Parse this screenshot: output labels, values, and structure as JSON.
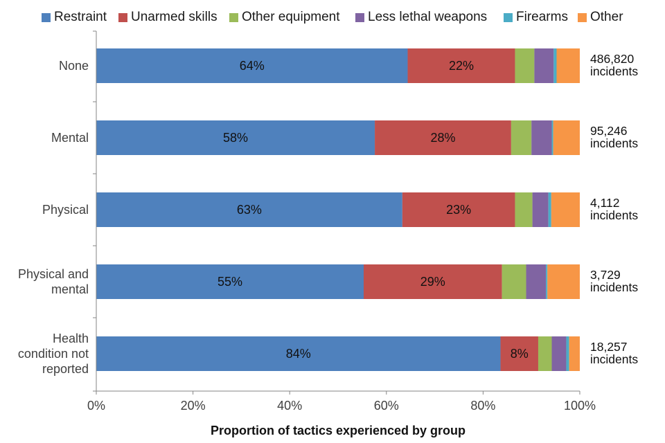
{
  "chart_data": {
    "type": "bar",
    "orientation": "horizontal",
    "stacked": true,
    "xlabel": "Proportion of tactics experienced by group",
    "xlim": [
      0,
      100
    ],
    "xticks": [
      "0%",
      "20%",
      "40%",
      "60%",
      "80%",
      "100%"
    ],
    "grid": false,
    "legend_position": "top",
    "categories": [
      "None",
      "Mental",
      "Physical",
      "Physical and mental",
      "Health condition not reported"
    ],
    "category_lines": [
      [
        "None"
      ],
      [
        "Mental"
      ],
      [
        "Physical"
      ],
      [
        "Physical and",
        "mental"
      ],
      [
        "Health",
        "condition not",
        "reported"
      ]
    ],
    "totals": [
      [
        "486,820",
        "incidents"
      ],
      [
        "95,246",
        "incidents"
      ],
      [
        "4,112",
        "incidents"
      ],
      [
        "3,729",
        "incidents"
      ],
      [
        "18,257",
        "incidents"
      ]
    ],
    "series": [
      {
        "name": "Restraint",
        "color": "#4F81BD",
        "values": [
          64.4,
          57.6,
          63.3,
          55.3,
          83.6
        ],
        "labels": [
          "64%",
          "58%",
          "63%",
          "55%",
          "84%"
        ]
      },
      {
        "name": "Unarmed skills",
        "color": "#C0504D",
        "values": [
          22.2,
          28.2,
          23.3,
          28.6,
          7.8
        ],
        "labels": [
          "22%",
          "28%",
          "23%",
          "29%",
          "8%"
        ]
      },
      {
        "name": "Other equipment",
        "color": "#9BBB59",
        "values": [
          4.0,
          4.2,
          3.6,
          5.0,
          2.8
        ],
        "labels": [
          "",
          "",
          "",
          "",
          ""
        ]
      },
      {
        "name": "Less lethal weapons",
        "color": "#8064A2",
        "values": [
          4.0,
          4.2,
          3.3,
          4.1,
          3.0
        ],
        "labels": [
          "",
          "",
          "",
          "",
          ""
        ]
      },
      {
        "name": "Firearms",
        "color": "#4BACC6",
        "values": [
          0.6,
          0.3,
          0.6,
          0.3,
          0.6
        ],
        "labels": [
          "",
          "",
          "",
          "",
          ""
        ]
      },
      {
        "name": "Other",
        "color": "#F79646",
        "values": [
          4.8,
          5.5,
          5.9,
          6.7,
          2.2
        ],
        "labels": [
          "",
          "",
          "",
          "",
          ""
        ]
      }
    ]
  }
}
